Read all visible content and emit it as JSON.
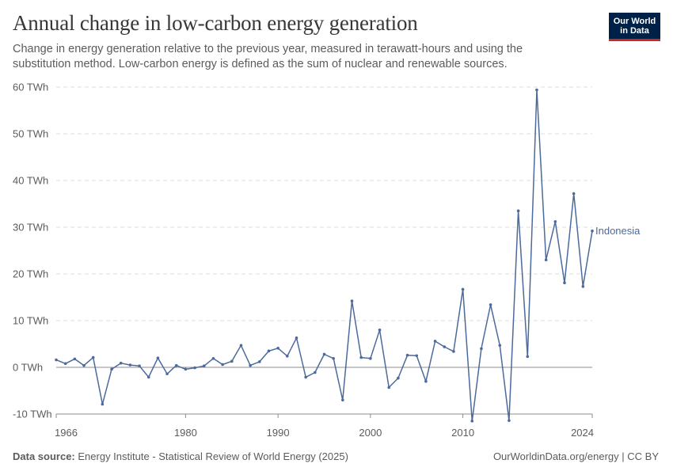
{
  "header": {
    "title": "Annual change in low-carbon energy generation",
    "subtitle": "Change in energy generation relative to the previous year, measured in terawatt-hours and using the substitution method. Low-carbon energy is defined as the sum of nuclear and renewable sources."
  },
  "logo": {
    "line1": "Our World",
    "line2": "in Data",
    "bg_color": "#002147",
    "accent_color": "#ce261e"
  },
  "footer": {
    "source_label": "Data source:",
    "source_text": "Energy Institute - Statistical Review of World Energy (2025)",
    "right_text": "OurWorldinData.org/energy | CC BY"
  },
  "chart_data": {
    "type": "line",
    "title": "Annual change in low-carbon energy generation",
    "xlabel": "",
    "ylabel": "",
    "xlim": [
      1966,
      2024
    ],
    "ylim": [
      -10,
      60
    ],
    "yticks": [
      -10,
      0,
      10,
      20,
      30,
      40,
      50,
      60
    ],
    "ytick_labels": [
      "-10 TWh",
      "0 TWh",
      "10 TWh",
      "20 TWh",
      "30 TWh",
      "40 TWh",
      "50 TWh",
      "60 TWh"
    ],
    "xticks": [
      1966,
      1980,
      1990,
      2000,
      2010,
      2024
    ],
    "xtick_labels": [
      "1966",
      "1980",
      "1990",
      "2000",
      "2010",
      "2024"
    ],
    "grid": "horizontal dashed",
    "series": [
      {
        "name": "Indonesia",
        "color": "#4c6a9c",
        "x": [
          1966,
          1967,
          1968,
          1969,
          1970,
          1971,
          1972,
          1973,
          1974,
          1975,
          1976,
          1977,
          1978,
          1979,
          1980,
          1981,
          1982,
          1983,
          1984,
          1985,
          1986,
          1987,
          1988,
          1989,
          1990,
          1991,
          1992,
          1993,
          1994,
          1995,
          1996,
          1997,
          1998,
          1999,
          2000,
          2001,
          2002,
          2003,
          2004,
          2005,
          2006,
          2007,
          2008,
          2009,
          2010,
          2011,
          2012,
          2013,
          2014,
          2015,
          2016,
          2017,
          2018,
          2019,
          2020,
          2021,
          2022,
          2023,
          2024
        ],
        "values": [
          1.6,
          0.8,
          1.8,
          0.4,
          2.1,
          -7.9,
          -0.4,
          0.9,
          0.5,
          0.3,
          -2.1,
          2.0,
          -1.4,
          0.4,
          -0.4,
          -0.1,
          0.3,
          1.9,
          0.6,
          1.3,
          4.7,
          0.4,
          1.2,
          3.5,
          4.1,
          2.4,
          6.3,
          -2.1,
          -1.1,
          2.8,
          1.9,
          -7.0,
          14.2,
          2.1,
          1.9,
          8.0,
          -4.3,
          -2.3,
          2.6,
          2.5,
          -3.0,
          5.6,
          4.4,
          3.4,
          16.7,
          -11.5,
          4.0,
          13.4,
          4.7,
          -11.4,
          33.5,
          2.3,
          59.4,
          23.0,
          31.2,
          18.1,
          37.2,
          17.3,
          29.2
        ]
      }
    ]
  }
}
